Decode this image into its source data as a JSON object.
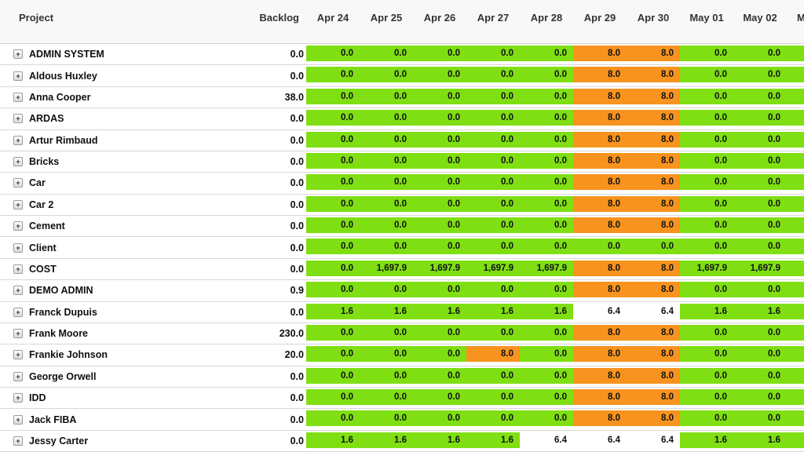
{
  "header": {
    "project_label": "Project",
    "backlog_label": "Backlog",
    "date_columns": [
      "Apr 24",
      "Apr 25",
      "Apr 26",
      "Apr 27",
      "Apr 28",
      "Apr 29",
      "Apr 30",
      "May 01",
      "May 02"
    ],
    "partial_date_column_label": "M"
  },
  "icons": {
    "expand_icon_glyph": "+"
  },
  "state_color_map": {
    "g": "#7FDF12",
    "o": "#F7931E",
    "w": "#FFFFFF"
  },
  "rows": [
    {
      "name": "ADMIN SYSTEM",
      "backlog": "0.0",
      "values": [
        "0.0",
        "0.0",
        "0.0",
        "0.0",
        "0.0",
        "8.0",
        "8.0",
        "0.0",
        "0.0"
      ],
      "states": [
        "g",
        "g",
        "g",
        "g",
        "g",
        "o",
        "o",
        "g",
        "g"
      ],
      "edge_state": "g"
    },
    {
      "name": "Aldous Huxley",
      "backlog": "0.0",
      "values": [
        "0.0",
        "0.0",
        "0.0",
        "0.0",
        "0.0",
        "8.0",
        "8.0",
        "0.0",
        "0.0"
      ],
      "states": [
        "g",
        "g",
        "g",
        "g",
        "g",
        "o",
        "o",
        "g",
        "g"
      ],
      "edge_state": "g"
    },
    {
      "name": "Anna Cooper",
      "backlog": "38.0",
      "values": [
        "0.0",
        "0.0",
        "0.0",
        "0.0",
        "0.0",
        "8.0",
        "8.0",
        "0.0",
        "0.0"
      ],
      "states": [
        "g",
        "g",
        "g",
        "g",
        "g",
        "o",
        "o",
        "g",
        "g"
      ],
      "edge_state": "g"
    },
    {
      "name": "ARDAS",
      "backlog": "0.0",
      "values": [
        "0.0",
        "0.0",
        "0.0",
        "0.0",
        "0.0",
        "8.0",
        "8.0",
        "0.0",
        "0.0"
      ],
      "states": [
        "g",
        "g",
        "g",
        "g",
        "g",
        "o",
        "o",
        "g",
        "g"
      ],
      "edge_state": "g"
    },
    {
      "name": "Artur Rimbaud",
      "backlog": "0.0",
      "values": [
        "0.0",
        "0.0",
        "0.0",
        "0.0",
        "0.0",
        "8.0",
        "8.0",
        "0.0",
        "0.0"
      ],
      "states": [
        "g",
        "g",
        "g",
        "g",
        "g",
        "o",
        "o",
        "g",
        "g"
      ],
      "edge_state": "g"
    },
    {
      "name": "Bricks",
      "backlog": "0.0",
      "values": [
        "0.0",
        "0.0",
        "0.0",
        "0.0",
        "0.0",
        "8.0",
        "8.0",
        "0.0",
        "0.0"
      ],
      "states": [
        "g",
        "g",
        "g",
        "g",
        "g",
        "o",
        "o",
        "g",
        "g"
      ],
      "edge_state": "g"
    },
    {
      "name": "Car",
      "backlog": "0.0",
      "values": [
        "0.0",
        "0.0",
        "0.0",
        "0.0",
        "0.0",
        "8.0",
        "8.0",
        "0.0",
        "0.0"
      ],
      "states": [
        "g",
        "g",
        "g",
        "g",
        "g",
        "o",
        "o",
        "g",
        "g"
      ],
      "edge_state": "g"
    },
    {
      "name": "Car 2",
      "backlog": "0.0",
      "values": [
        "0.0",
        "0.0",
        "0.0",
        "0.0",
        "0.0",
        "8.0",
        "8.0",
        "0.0",
        "0.0"
      ],
      "states": [
        "g",
        "g",
        "g",
        "g",
        "g",
        "o",
        "o",
        "g",
        "g"
      ],
      "edge_state": "g"
    },
    {
      "name": "Cement",
      "backlog": "0.0",
      "values": [
        "0.0",
        "0.0",
        "0.0",
        "0.0",
        "0.0",
        "8.0",
        "8.0",
        "0.0",
        "0.0"
      ],
      "states": [
        "g",
        "g",
        "g",
        "g",
        "g",
        "o",
        "o",
        "g",
        "g"
      ],
      "edge_state": "g"
    },
    {
      "name": "Client",
      "backlog": "0.0",
      "values": [
        "0.0",
        "0.0",
        "0.0",
        "0.0",
        "0.0",
        "0.0",
        "0.0",
        "0.0",
        "0.0"
      ],
      "states": [
        "g",
        "g",
        "g",
        "g",
        "g",
        "g",
        "g",
        "g",
        "g"
      ],
      "edge_state": "g"
    },
    {
      "name": "COST",
      "backlog": "0.0",
      "values": [
        "0.0",
        "1,697.9",
        "1,697.9",
        "1,697.9",
        "1,697.9",
        "8.0",
        "8.0",
        "1,697.9",
        "1,697.9"
      ],
      "states": [
        "g",
        "g",
        "g",
        "g",
        "g",
        "o",
        "o",
        "g",
        "g"
      ],
      "edge_state": "g"
    },
    {
      "name": "DEMO ADMIN",
      "backlog": "0.9",
      "values": [
        "0.0",
        "0.0",
        "0.0",
        "0.0",
        "0.0",
        "8.0",
        "8.0",
        "0.0",
        "0.0"
      ],
      "states": [
        "g",
        "g",
        "g",
        "g",
        "g",
        "o",
        "o",
        "g",
        "g"
      ],
      "edge_state": "g"
    },
    {
      "name": "Franck Dupuis",
      "backlog": "0.0",
      "values": [
        "1.6",
        "1.6",
        "1.6",
        "1.6",
        "1.6",
        "6.4",
        "6.4",
        "1.6",
        "1.6"
      ],
      "states": [
        "g",
        "g",
        "g",
        "g",
        "g",
        "w",
        "w",
        "g",
        "g"
      ],
      "edge_state": "g"
    },
    {
      "name": "Frank Moore",
      "backlog": "230.0",
      "values": [
        "0.0",
        "0.0",
        "0.0",
        "0.0",
        "0.0",
        "8.0",
        "8.0",
        "0.0",
        "0.0"
      ],
      "states": [
        "g",
        "g",
        "g",
        "g",
        "g",
        "o",
        "o",
        "g",
        "g"
      ],
      "edge_state": "g"
    },
    {
      "name": "Frankie Johnson",
      "backlog": "20.0",
      "values": [
        "0.0",
        "0.0",
        "0.0",
        "8.0",
        "0.0",
        "8.0",
        "8.0",
        "0.0",
        "0.0"
      ],
      "states": [
        "g",
        "g",
        "g",
        "o",
        "g",
        "o",
        "o",
        "g",
        "g"
      ],
      "edge_state": "g"
    },
    {
      "name": "George Orwell",
      "backlog": "0.0",
      "values": [
        "0.0",
        "0.0",
        "0.0",
        "0.0",
        "0.0",
        "8.0",
        "8.0",
        "0.0",
        "0.0"
      ],
      "states": [
        "g",
        "g",
        "g",
        "g",
        "g",
        "o",
        "o",
        "g",
        "g"
      ],
      "edge_state": "g"
    },
    {
      "name": "IDD",
      "backlog": "0.0",
      "values": [
        "0.0",
        "0.0",
        "0.0",
        "0.0",
        "0.0",
        "8.0",
        "8.0",
        "0.0",
        "0.0"
      ],
      "states": [
        "g",
        "g",
        "g",
        "g",
        "g",
        "o",
        "o",
        "g",
        "g"
      ],
      "edge_state": "g"
    },
    {
      "name": "Jack FIBA",
      "backlog": "0.0",
      "values": [
        "0.0",
        "0.0",
        "0.0",
        "0.0",
        "0.0",
        "8.0",
        "8.0",
        "0.0",
        "0.0"
      ],
      "states": [
        "g",
        "g",
        "g",
        "g",
        "g",
        "o",
        "o",
        "g",
        "g"
      ],
      "edge_state": "g"
    },
    {
      "name": "Jessy Carter",
      "backlog": "0.0",
      "values": [
        "1.6",
        "1.6",
        "1.6",
        "1.6",
        "6.4",
        "6.4",
        "6.4",
        "1.6",
        "1.6"
      ],
      "states": [
        "g",
        "g",
        "g",
        "g",
        "w",
        "w",
        "w",
        "g",
        "g"
      ],
      "edge_state": "g"
    }
  ]
}
